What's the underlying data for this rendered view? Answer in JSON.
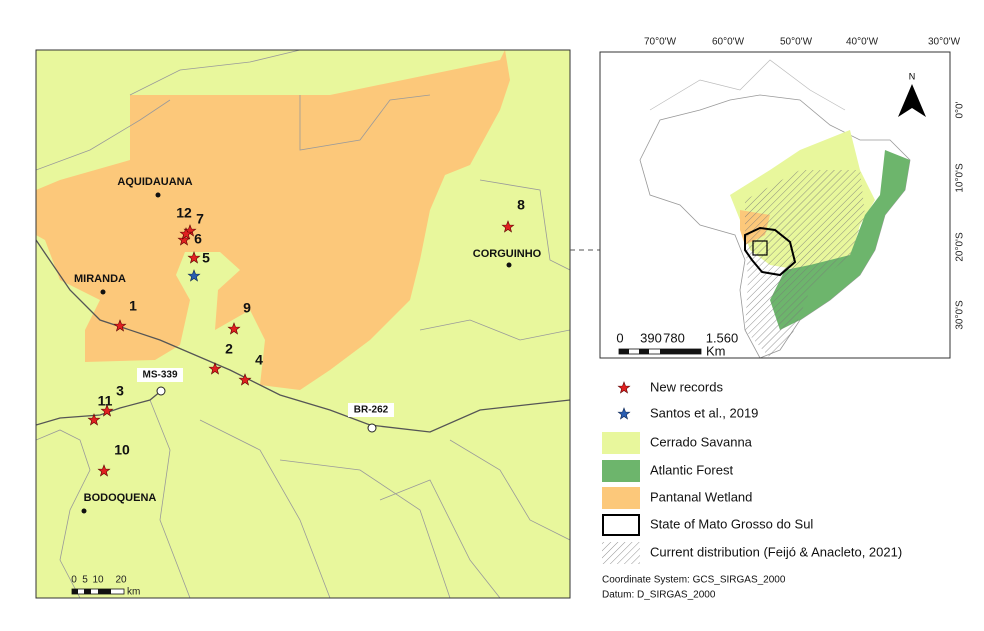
{
  "main_map": {
    "places": [
      "AQUIDAUANA",
      "MIRANDA",
      "CORGUINHO",
      "BODOQUENA"
    ],
    "records": [
      "1",
      "2",
      "3",
      "4",
      "5",
      "6",
      "7",
      "8",
      "9",
      "10",
      "11",
      "12"
    ],
    "roads": [
      "MS-339",
      "BR-262"
    ],
    "scale": {
      "labels": [
        "0",
        "5",
        "10",
        "20"
      ],
      "unit": "km"
    }
  },
  "inset_map": {
    "lon_labels": [
      "70°0'W",
      "60°0'W",
      "50°0'W",
      "40°0'W",
      "30°0'W"
    ],
    "lat_labels": [
      "0°0'",
      "10°0'S",
      "20°0'S",
      "30°0'S"
    ],
    "north": "N",
    "scale": {
      "labels": [
        "0",
        "390",
        "780",
        "1.560"
      ],
      "unit": "Km"
    }
  },
  "legend": {
    "items": [
      "New records",
      "Santos et al., 2019",
      "Cerrado Savanna",
      "Atlantic Forest",
      "Pantanal Wetland",
      "State of Mato Grosso do Sul",
      "Current distribution (Feijó & Anacleto, 2021)"
    ]
  },
  "footer": [
    "Coordinate System: GCS_SIRGAS_2000",
    "Datum: D_SIRGAS_2000"
  ]
}
